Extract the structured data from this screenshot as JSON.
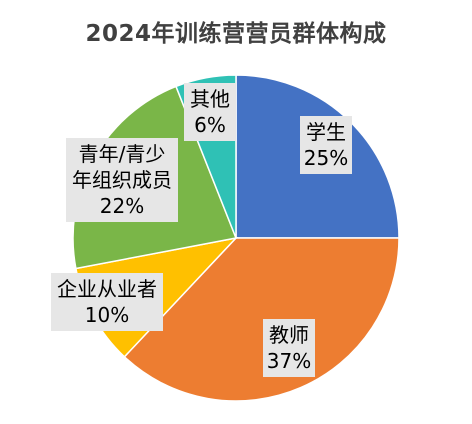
{
  "title": "2024年训练营营员群体构成",
  "chart_data": {
    "type": "pie",
    "title": "2024年训练营营员群体构成",
    "slices": [
      {
        "name": "学生",
        "value": 25,
        "label": "25%",
        "color": "#4472C4"
      },
      {
        "name": "教师",
        "value": 37,
        "label": "37%",
        "color": "#ED7D31"
      },
      {
        "name": "企业从业者",
        "value": 10,
        "label": "10%",
        "color": "#FFC000"
      },
      {
        "name": "青年/青少年组织成员",
        "value": 22,
        "label": "22%",
        "color": "#7AB648"
      },
      {
        "name": "其他",
        "value": 6,
        "label": "6%",
        "color": "#2FC1B5"
      }
    ],
    "start_angle": "12 o'clock",
    "direction": "clockwise",
    "legend": "none"
  }
}
